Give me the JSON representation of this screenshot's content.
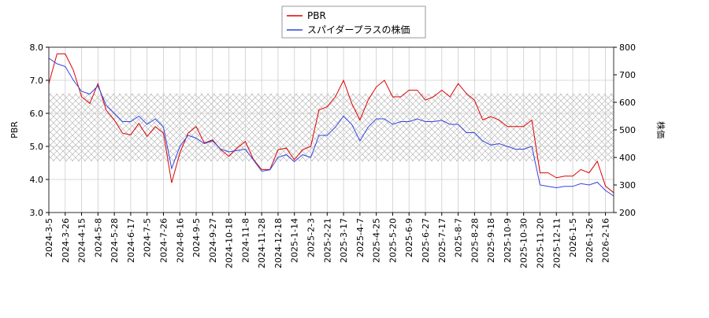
{
  "chart_data": {
    "type": "line",
    "categories": [
      "2024-3-5",
      null,
      "2024-3-26",
      null,
      "2024-4-15",
      null,
      "2024-5-8",
      null,
      "2024-5-28",
      null,
      "2024-6-17",
      null,
      "2024-7-5",
      null,
      "2024-7-26",
      null,
      "2024-8-16",
      null,
      "2024-9-5",
      null,
      "2024-9-27",
      null,
      "2024-10-18",
      null,
      "2024-11-8",
      null,
      "2024-11-28",
      null,
      "2024-12-18",
      null,
      "2025-1-14",
      null,
      "2025-2-3",
      null,
      "2025-2-21",
      null,
      "2025-3-17",
      null,
      "2025-4-7",
      null,
      "2025-4-25",
      null,
      "2025-5-20",
      null,
      "2025-6-9",
      null,
      "2025-6-27",
      null,
      "2025-7-17",
      null,
      "2025-8-7",
      null,
      "2025-8-28",
      null,
      "2025-9-18",
      null,
      "2025-10-9",
      null,
      "2025-10-30",
      null,
      "2025-11-20",
      null,
      "2025-12-11",
      null,
      "2026-1-5",
      null,
      "2026-1-26",
      null,
      "2026-2-16",
      null
    ],
    "series": [
      {
        "name": "PBR",
        "color": "#dd0000",
        "values": [
          6.9,
          7.8,
          7.8,
          7.3,
          6.5,
          6.3,
          6.9,
          6.1,
          5.8,
          5.4,
          5.35,
          5.7,
          5.3,
          5.6,
          5.4,
          3.9,
          4.8,
          5.4,
          5.6,
          5.1,
          5.2,
          4.9,
          4.7,
          4.95,
          5.15,
          4.6,
          4.3,
          4.3,
          4.9,
          4.95,
          4.6,
          4.9,
          5.0,
          6.1,
          6.2,
          6.5,
          7.0,
          6.3,
          5.8,
          6.4,
          6.8,
          7.0,
          6.5,
          6.5,
          6.7,
          6.7,
          6.4,
          6.5,
          6.7,
          6.5,
          6.9,
          6.6,
          6.4,
          5.8,
          5.9,
          5.8,
          5.6,
          5.6,
          5.6,
          5.8,
          4.2,
          4.2,
          4.05,
          4.1,
          4.1,
          4.3,
          4.2,
          4.55,
          3.8,
          3.6
        ]
      },
      {
        "name": "スパイダープラスの株価",
        "color": "#3344dd",
        "axis": "y2",
        "values": [
          760,
          740,
          730,
          680,
          640,
          630,
          660,
          590,
          560,
          530,
          530,
          550,
          520,
          540,
          510,
          360,
          440,
          480,
          470,
          450,
          460,
          430,
          420,
          425,
          430,
          390,
          350,
          355,
          400,
          410,
          385,
          410,
          400,
          480,
          480,
          510,
          550,
          520,
          460,
          510,
          540,
          540,
          520,
          530,
          530,
          540,
          530,
          530,
          535,
          520,
          520,
          490,
          490,
          460,
          445,
          450,
          440,
          430,
          430,
          440,
          300,
          295,
          290,
          295,
          295,
          305,
          300,
          310,
          280,
          260
        ]
      }
    ],
    "ylabel": "PBR",
    "y2label": "株価",
    "ylim": [
      3,
      8
    ],
    "yticks": [
      {
        "value": 3,
        "label": "3.0"
      },
      {
        "value": 4,
        "label": "4.0"
      },
      {
        "value": 5,
        "label": "5.0"
      },
      {
        "value": 6,
        "label": "6.0"
      },
      {
        "value": 7,
        "label": "7.0"
      },
      {
        "value": 8,
        "label": "8.0"
      }
    ],
    "y2lim": [
      200,
      800
    ],
    "y2ticks": [
      200,
      300,
      400,
      500,
      600,
      700,
      800
    ],
    "band": [
      4.55,
      6.6
    ],
    "grid": true,
    "legend": "top"
  }
}
